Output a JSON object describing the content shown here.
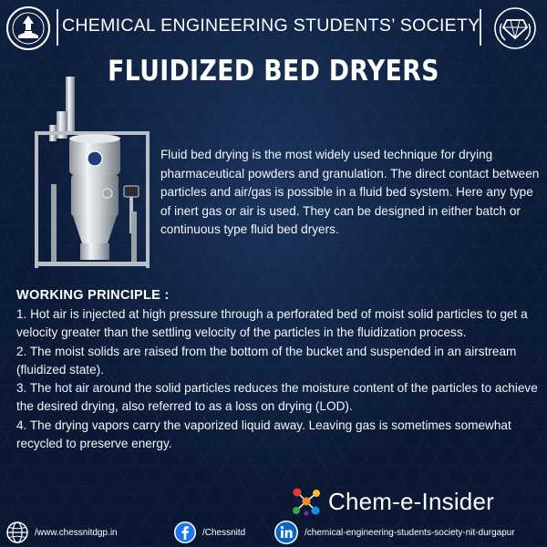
{
  "header": {
    "society_name": "CHEMICAL ENGINEERING STUDENTS’ SOCIETY",
    "left_logo": "nit-durgapur-emblem-icon",
    "right_logo": "chess-society-emblem-icon"
  },
  "title": "FLUIDIZED BED DRYERS",
  "illustration": "fluid-bed-dryer-machine",
  "intro": "Fluid bed drying is the most widely used technique for drying pharmaceutical powders and granulation. The direct contact between particles and air/gas is possible in a fluid bed system. Here any type of inert gas or air is used. They can be designed in either batch or continuous type fluid bed dryers.",
  "working_principle": {
    "heading": "WORKING PRINCIPLE :",
    "points": [
      "1. Hot air is injected at high pressure through a perforated bed of moist solid particles to get a velocity greater than the settling velocity of the particles in the fluidization process.",
      "2. The moist solids are raised from the bottom of the bucket and suspended in an airstream (fluidized state).",
      "3. The hot air around the solid particles reduces the moisture content of the particles to achieve the desired drying, also referred to as a loss on drying (LOD).",
      "4. The drying vapors carry the vaporized liquid away. Leaving gas is sometimes somewhat recycled to preserve energy."
    ]
  },
  "brand": {
    "name": "Chem-e-Insider",
    "icon": "molecule-logo-icon"
  },
  "footer": {
    "website": "/www.chessnitdgp.in",
    "facebook": "/Chessnitd",
    "linkedin": "/chemical-engineering-students-society-nit-durgapur",
    "icons": [
      "globe-icon",
      "facebook-icon",
      "linkedin-icon"
    ]
  },
  "colors": {
    "background": "#0e1f3f",
    "facebook": "#1877f2",
    "linkedin": "#0a66c2",
    "text": "#ffffff"
  }
}
